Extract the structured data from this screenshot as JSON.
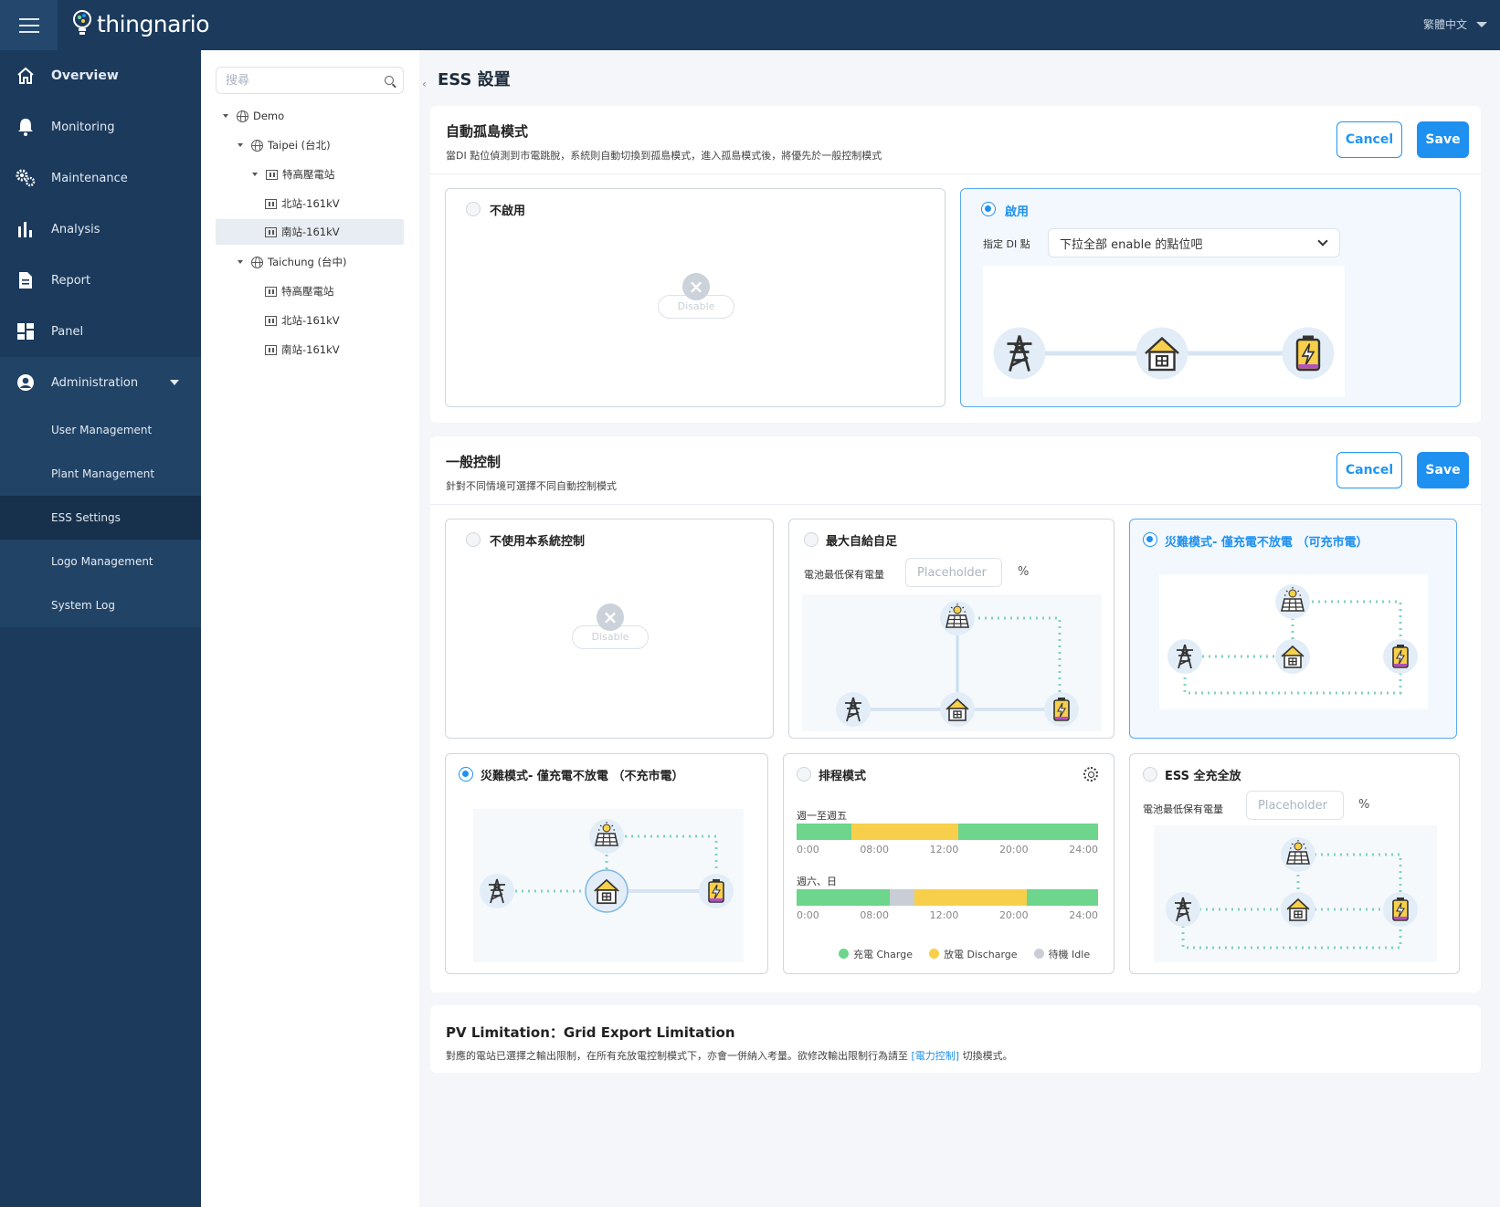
{
  "app": {
    "name": "thingnario",
    "language": "繁體中文"
  },
  "sidebar": {
    "items": [
      {
        "label": "Overview"
      },
      {
        "label": "Monitoring"
      },
      {
        "label": "Maintenance"
      },
      {
        "label": "Analysis"
      },
      {
        "label": "Report"
      },
      {
        "label": "Panel"
      },
      {
        "label": "Administration"
      }
    ],
    "admin_items": [
      {
        "label": "User Management"
      },
      {
        "label": "Plant Management"
      },
      {
        "label": "ESS Settings"
      },
      {
        "label": "Logo Management"
      },
      {
        "label": "System Log"
      }
    ]
  },
  "tree": {
    "search_placeholder": "搜尋",
    "nodes": [
      {
        "label": "Demo"
      },
      {
        "label": "Taipei (台北)"
      },
      {
        "label": "特高壓電站"
      },
      {
        "label": "北站-161kV"
      },
      {
        "label": "南站-161kV"
      },
      {
        "label": "Taichung (台中)"
      },
      {
        "label": "特高壓電站"
      },
      {
        "label": "北站-161kV"
      },
      {
        "label": "南站-161kV"
      }
    ]
  },
  "page": {
    "title": "ESS 設置",
    "collapse": "‹"
  },
  "island": {
    "title": "自動孤島模式",
    "desc": "當DI 點位偵測到市電跳脫，系統則自動切換到孤島模式，進入孤島模式後，將優先於一般控制模式",
    "cancel": "Cancel",
    "save": "Save",
    "disable_card": {
      "title": "不啟用",
      "disabled_label": "Disable"
    },
    "enable_card": {
      "title": "啟用",
      "di_label": "指定 DI 點",
      "di_value": "下拉全部 enable 的點位吧"
    }
  },
  "general": {
    "title": "一般控制",
    "desc": "針對不同情境可選擇不同自動控制模式",
    "cancel": "Cancel",
    "save": "Save",
    "cards": {
      "none": {
        "title": "不使用本系統控制",
        "disabled_label": "Disable"
      },
      "self": {
        "title": "最大自給自足",
        "field_label": "電池最低保有電量",
        "placeholder": "Placeholder",
        "unit": "%"
      },
      "disaster_grid": {
        "title": "災難模式- 僅充電不放電 （可充市電）"
      },
      "disaster_nogrid": {
        "title": "災難模式- 僅充電不放電 （不充市電）"
      },
      "schedule": {
        "title": "排程模式",
        "weekday_label": "週一至週五",
        "weekend_label": "週六、日",
        "ticks": [
          "0:00",
          "08:00",
          "12:00",
          "20:00",
          "24:00"
        ],
        "legend": [
          "充電 Charge",
          "放電 Discharge",
          "待機 Idle"
        ]
      },
      "full": {
        "title": "ESS 全充全放",
        "field_label": "電池最低保有電量",
        "placeholder": "Placeholder",
        "unit": "%"
      }
    }
  },
  "pv": {
    "title": "PV Limitation：Grid Export Limitation",
    "desc_before": "對應的電站已選擇之輸出限制，在所有充放電控制模式下，亦會一併納入考量。欲修改輸出限制行為請至",
    "desc_link": "[電力控制]",
    "desc_after": "切換模式。"
  },
  "colors": {
    "primary": "#1e90ef",
    "sidebar": "#1b3a5c",
    "charge": "#6dd58c",
    "discharge": "#f7cf4a",
    "idle": "#c9ced6"
  }
}
